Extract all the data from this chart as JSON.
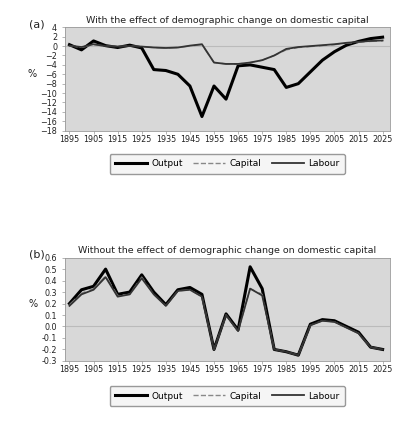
{
  "years": [
    1895,
    1900,
    1905,
    1910,
    1915,
    1920,
    1925,
    1930,
    1935,
    1940,
    1945,
    1950,
    1955,
    1960,
    1965,
    1970,
    1975,
    1980,
    1985,
    1990,
    1995,
    2000,
    2005,
    2010,
    2015,
    2020,
    2025
  ],
  "panel_a": {
    "title": "With the effect of demographic change on domestic capital",
    "ylabel": "%",
    "ylim": [
      -18,
      4
    ],
    "yticks": [
      -18,
      -16,
      -14,
      -12,
      -10,
      -8,
      -6,
      -4,
      -2,
      0,
      2,
      4
    ],
    "output": [
      0.3,
      -0.8,
      1.1,
      0.1,
      -0.3,
      0.2,
      -0.4,
      -5.0,
      -5.2,
      -6.0,
      -8.5,
      -15.0,
      -8.5,
      -11.3,
      -4.2,
      -4.0,
      -4.5,
      -5.0,
      -8.8,
      -8.0,
      -5.5,
      -3.0,
      -1.2,
      0.2,
      1.0,
      1.6,
      1.9
    ],
    "capital": [
      0.1,
      -0.3,
      0.3,
      0.0,
      -0.1,
      0.0,
      -0.1,
      -0.3,
      -0.4,
      -0.3,
      0.0,
      0.3,
      -3.5,
      -3.8,
      -3.8,
      -3.5,
      -3.0,
      -2.0,
      -0.8,
      -0.3,
      -0.1,
      0.1,
      0.3,
      0.6,
      0.8,
      1.0,
      1.1
    ],
    "labour": [
      0.1,
      -0.2,
      0.4,
      0.0,
      -0.1,
      0.0,
      -0.1,
      -0.3,
      -0.4,
      -0.3,
      0.1,
      0.4,
      -3.5,
      -3.8,
      -3.8,
      -3.5,
      -3.0,
      -2.0,
      -0.6,
      -0.2,
      0.0,
      0.2,
      0.4,
      0.7,
      0.9,
      1.1,
      1.2
    ]
  },
  "panel_b": {
    "title": "Without the effect of demographic change on domestic capital",
    "ylabel": "%",
    "ylim": [
      -0.3,
      0.6
    ],
    "yticks": [
      -0.3,
      -0.2,
      -0.1,
      0.0,
      0.1,
      0.2,
      0.3,
      0.4,
      0.5,
      0.6
    ],
    "output": [
      0.2,
      0.32,
      0.35,
      0.5,
      0.28,
      0.3,
      0.45,
      0.3,
      0.19,
      0.32,
      0.34,
      0.28,
      -0.2,
      0.11,
      -0.03,
      0.52,
      0.33,
      -0.2,
      -0.22,
      -0.25,
      0.02,
      0.06,
      0.05,
      0.0,
      -0.05,
      -0.18,
      -0.2
    ],
    "capital": [
      0.19,
      0.29,
      0.33,
      0.44,
      0.27,
      0.28,
      0.43,
      0.28,
      0.18,
      0.31,
      0.32,
      0.26,
      -0.2,
      0.1,
      -0.04,
      0.33,
      0.28,
      -0.2,
      -0.22,
      -0.25,
      0.01,
      0.05,
      0.04,
      -0.01,
      -0.06,
      -0.18,
      -0.2
    ],
    "labour": [
      0.18,
      0.28,
      0.32,
      0.43,
      0.26,
      0.28,
      0.42,
      0.28,
      0.18,
      0.31,
      0.32,
      0.26,
      -0.2,
      0.1,
      -0.04,
      0.33,
      0.27,
      -0.2,
      -0.22,
      -0.25,
      0.01,
      0.05,
      0.04,
      -0.01,
      -0.06,
      -0.18,
      -0.2
    ]
  },
  "xtick_labels": [
    "1895",
    "1905",
    "1915",
    "1925",
    "1935",
    "1945",
    "1955",
    "1965",
    "1975",
    "1985",
    "1995",
    "2005",
    "2015",
    "2025"
  ],
  "xtick_positions": [
    1895,
    1905,
    1915,
    1925,
    1935,
    1945,
    1955,
    1965,
    1975,
    1985,
    1995,
    2005,
    2015,
    2025
  ],
  "output_color": "#000000",
  "capital_color": "#888888",
  "labour_color": "#333333",
  "bg_color": "#d8d8d8",
  "fig_bg_color": "#ffffff",
  "legend_labels": [
    "Output",
    "Capital",
    "Labour"
  ],
  "label_a": "(a)",
  "label_b": "(b)"
}
